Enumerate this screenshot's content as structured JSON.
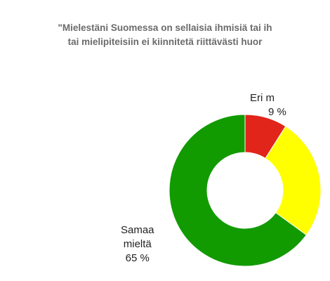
{
  "chart_data": {
    "type": "pie",
    "title_lines": [
      "\"Mielestäni Suomessa on sellaisia ihmisiä tai ih",
      "tai mielipiteisiin ei kiinnitetä riittävästi huor"
    ],
    "slices": [
      {
        "name": "Eri m",
        "value_label": "9 %",
        "value": 9,
        "color": "#e1251b"
      },
      {
        "name": "",
        "value_label": "",
        "value": 26,
        "color": "#ffff00"
      },
      {
        "name": "Samaa\nmieltä",
        "value_label": "65 %",
        "value": 65,
        "color": "#129a01"
      }
    ]
  }
}
